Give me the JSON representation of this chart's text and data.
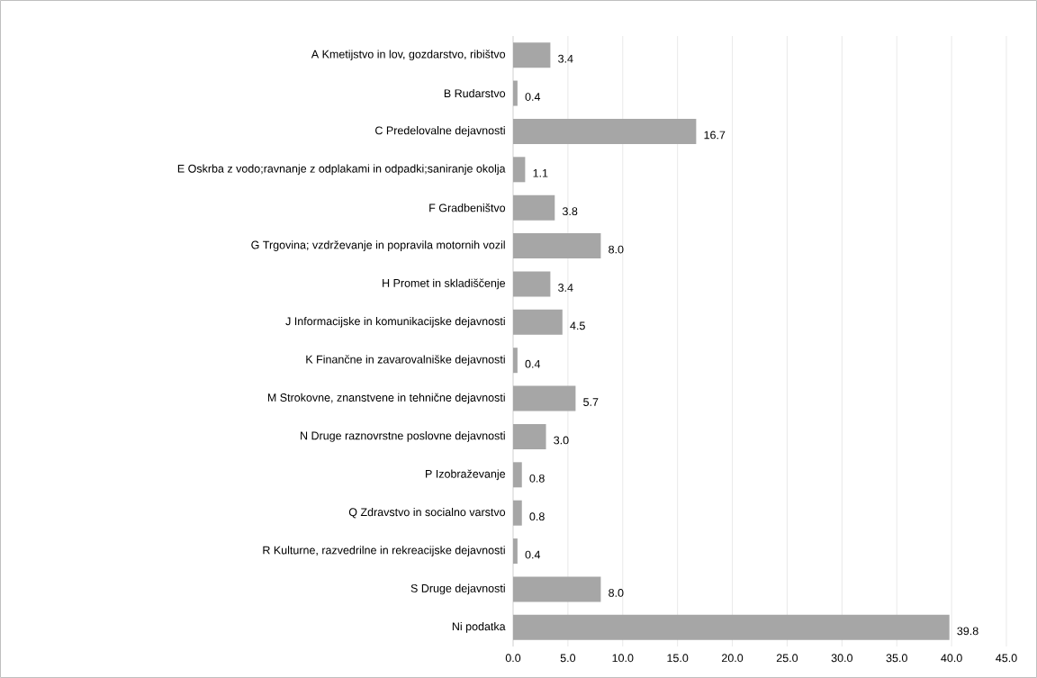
{
  "chart_data": {
    "type": "bar",
    "orientation": "horizontal",
    "categories": [
      "A Kmetijstvo in lov, gozdarstvo, ribištvo",
      "B Rudarstvo",
      "C Predelovalne dejavnosti",
      "E Oskrba z vodo;ravnanje z odplakami in odpadki;saniranje okolja",
      "F Gradbeništvo",
      "G Trgovina; vzdrževanje in popravila motornih vozil",
      "H Promet in skladiščenje",
      "J Informacijske in komunikacijske dejavnosti",
      "K Finančne in zavarovalniške dejavnosti",
      "M Strokovne, znanstvene in tehnične dejavnosti",
      "N Druge raznovrstne poslovne dejavnosti",
      "P Izobraževanje",
      "Q Zdravstvo in socialno varstvo",
      "R Kulturne, razvedrilne in rekreacijske dejavnosti",
      "S Druge dejavnosti",
      "Ni podatka"
    ],
    "values": [
      3.4,
      0.4,
      16.7,
      1.1,
      3.8,
      8.0,
      3.4,
      4.5,
      0.4,
      5.7,
      3.0,
      0.8,
      0.8,
      0.4,
      8.0,
      39.8
    ],
    "value_labels": [
      "3.4",
      "0.4",
      "16.7",
      "1.1",
      "3.8",
      "8.0",
      "3.4",
      "4.5",
      "0.4",
      "5.7",
      "3.0",
      "0.8",
      "0.8",
      "0.4",
      "8.0",
      "39.8"
    ],
    "color": "#a6a6a6",
    "xlim": [
      0,
      45
    ],
    "xticks": [
      {
        "value": 0,
        "label": "0.0"
      },
      {
        "value": 5,
        "label": "5.0"
      },
      {
        "value": 10,
        "label": "10.0"
      },
      {
        "value": 15,
        "label": "15.0"
      },
      {
        "value": 20,
        "label": "20.0"
      },
      {
        "value": 25,
        "label": "25.0"
      },
      {
        "value": 30,
        "label": "30.0"
      },
      {
        "value": 35,
        "label": "35.0"
      },
      {
        "value": 40,
        "label": "40.0"
      },
      {
        "value": 45,
        "label": "45.0"
      }
    ],
    "grid": "x"
  }
}
